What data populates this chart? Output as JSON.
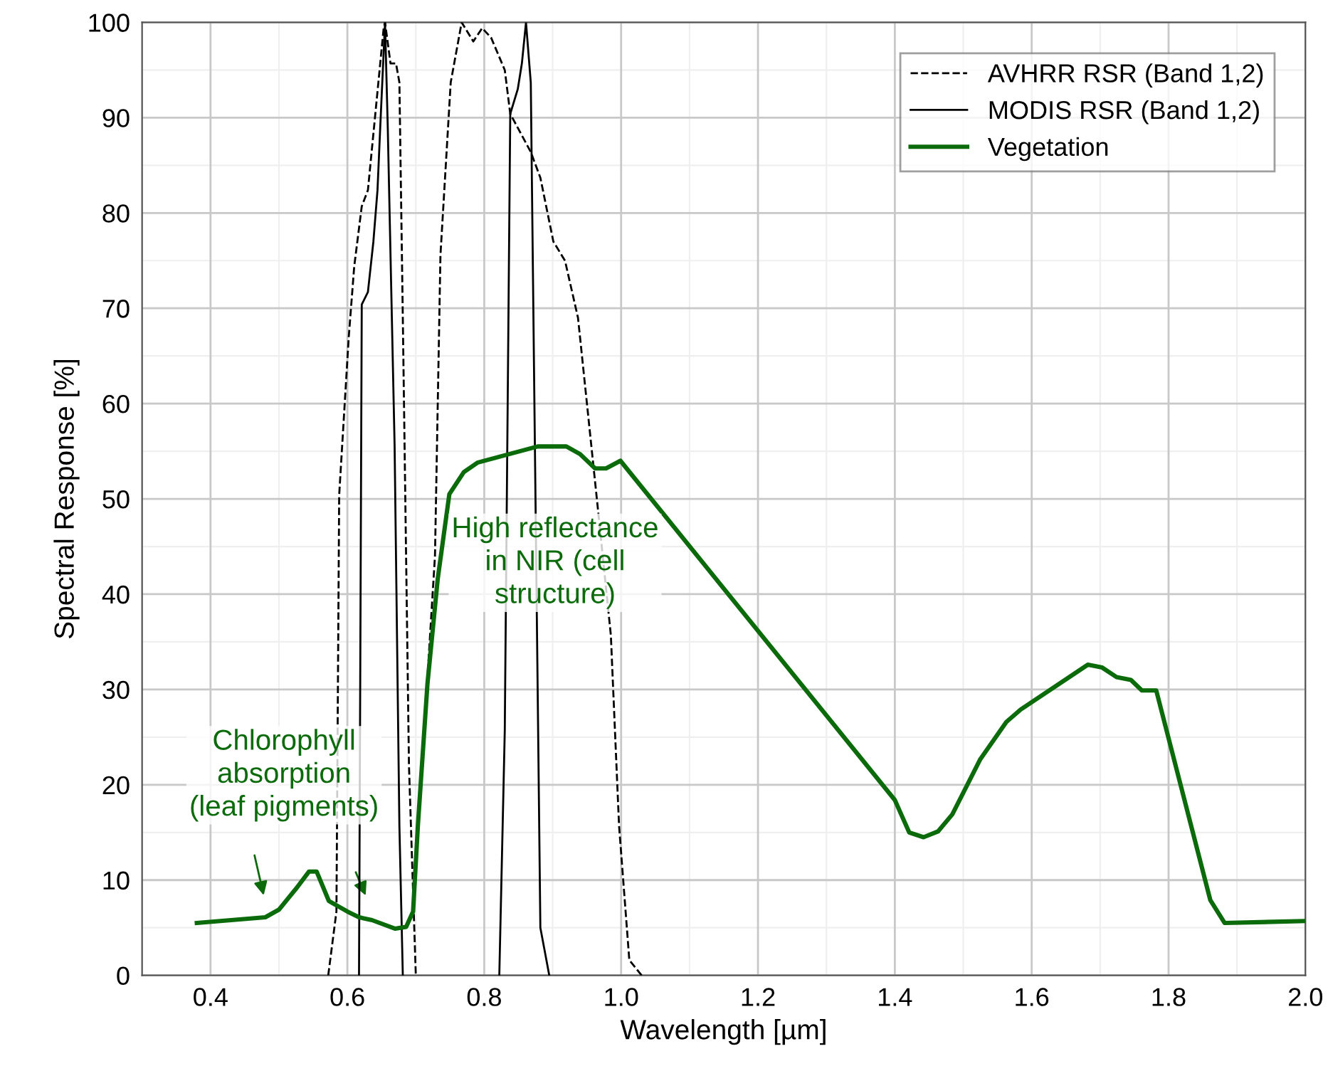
{
  "chart_data": {
    "type": "line",
    "xlabel": "Wavelength [µm]",
    "ylabel": "Spectral Response [%]",
    "xlim": [
      0.3,
      2.0
    ],
    "ylim": [
      0,
      100
    ],
    "xticks": [
      0.4,
      0.6,
      0.8,
      {
        "value": 1,
        "label": "1.0"
      },
      1.2,
      1.4,
      1.6,
      1.8,
      {
        "value": 2,
        "label": "2.0"
      }
    ],
    "yticks": [
      0,
      10,
      20,
      30,
      40,
      50,
      60,
      70,
      80,
      90,
      100
    ],
    "grid": true,
    "legend": "top right",
    "marker": "none",
    "annotations": [
      "Chlorophyll\nabsorption\n(leaf pigments)",
      "High reflectance\nin NIR (cell\nstructure)"
    ],
    "series": [
      {
        "name": "AVHRR RSR (Band 1,2)",
        "color": "#000000",
        "line_style": "dashed",
        "x": [
          0.572,
          0.584,
          0.588,
          0.602,
          0.61,
          0.621,
          0.63,
          0.653,
          0.655,
          0.663,
          0.671,
          0.676,
          0.681,
          0.69,
          0.7,
          0.705,
          0.709,
          0.728,
          0.736,
          0.751,
          0.767,
          0.784,
          0.797,
          0.81,
          0.83,
          0.838,
          0.868,
          0.882,
          0.901,
          0.918,
          0.937,
          0.966,
          0.985,
          0.997,
          1.012,
          1.03
        ],
        "values": [
          0,
          6.7,
          50.4,
          67,
          74.4,
          80.7,
          82.4,
          99.4,
          100,
          95.7,
          95.7,
          93.7,
          69,
          22,
          0,
          null,
          22,
          44,
          75.6,
          93.7,
          100,
          98,
          99.4,
          98.4,
          95,
          90.4,
          86.4,
          83.7,
          77,
          75,
          69,
          49,
          35.7,
          15.7,
          1.6,
          0
        ]
      },
      {
        "name": "MODIS RSR (Band 1,2)",
        "color": "#000000",
        "line_style": "solid",
        "x": [
          0.617,
          0.621,
          0.63,
          0.638,
          0.644,
          0.648,
          0.655,
          0.659,
          0.669,
          0.676,
          0.681,
          0.75,
          0.822,
          0.83,
          0.838,
          0.849,
          0.855,
          0.861,
          0.868,
          0.874,
          0.882,
          0.895
        ],
        "values": [
          0,
          70.4,
          71.7,
          77,
          82.4,
          89,
          100,
          89,
          55.6,
          15.7,
          0,
          null,
          0,
          25.7,
          90.4,
          93,
          95.7,
          100,
          93.7,
          55.6,
          5,
          0
        ]
      },
      {
        "name": "Vegetation",
        "color": "#0b6b0b",
        "line_style": "solid",
        "x": [
          0.38,
          0.48,
          0.5,
          0.525,
          0.544,
          0.555,
          0.573,
          0.6,
          0.617,
          0.636,
          0.67,
          0.686,
          0.696,
          0.703,
          0.717,
          0.732,
          0.749,
          0.77,
          0.79,
          0.878,
          0.92,
          0.94,
          0.962,
          0.978,
          0.999,
          1.4,
          1.421,
          1.442,
          1.463,
          1.484,
          1.525,
          1.563,
          1.584,
          1.682,
          1.703,
          1.724,
          1.745,
          1.761,
          1.782,
          1.861,
          1.882,
          2.0
        ],
        "values": [
          5.5,
          6.1,
          6.9,
          9.1,
          10.9,
          10.9,
          7.8,
          6.7,
          6.1,
          5.8,
          4.9,
          5.1,
          6.7,
          15.7,
          30.6,
          41.6,
          50.5,
          52.8,
          53.8,
          55.5,
          55.5,
          54.7,
          53.2,
          53.2,
          54.0,
          18.4,
          15.0,
          14.5,
          15.1,
          16.9,
          22.7,
          26.6,
          27.9,
          32.6,
          32.3,
          31.3,
          31.0,
          29.9,
          29.9,
          7.9,
          5.5,
          5.7
        ]
      }
    ]
  }
}
